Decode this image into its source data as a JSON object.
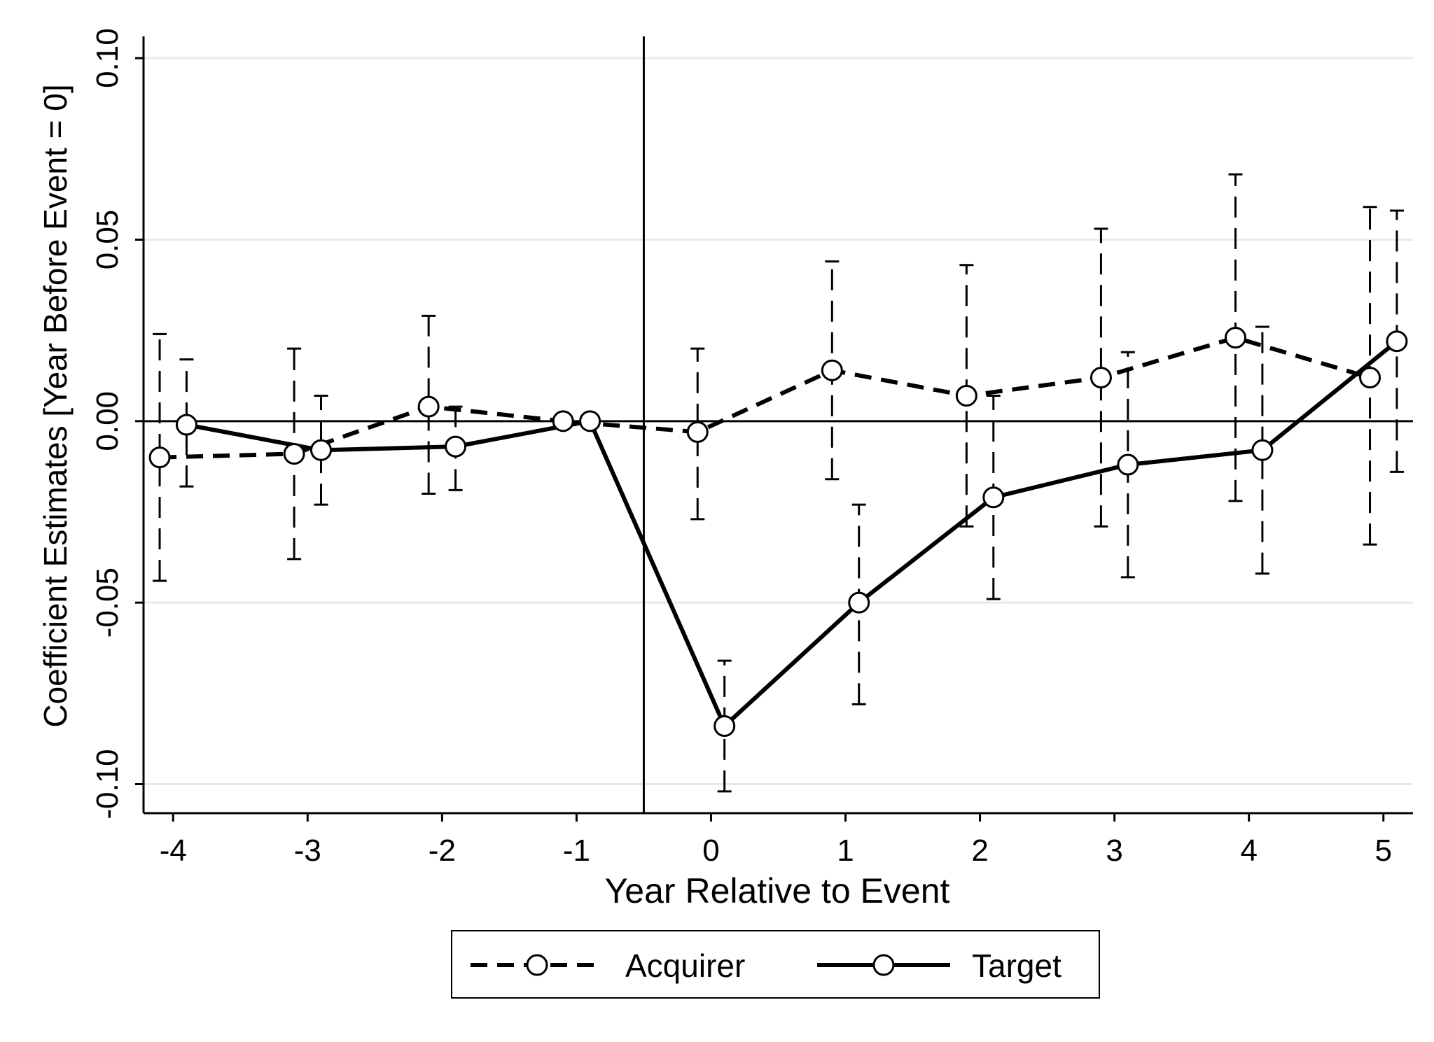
{
  "chart_data": {
    "type": "line",
    "title": "",
    "xlabel": "Year Relative to Event",
    "ylabel": "Coefficient Estimates [Year Before Event = 0]",
    "x": [
      -4,
      -3,
      -2,
      -1,
      0,
      1,
      2,
      3,
      4,
      5
    ],
    "x_tick_labels": [
      "-4",
      "-3",
      "-2",
      "-1",
      "0",
      "1",
      "2",
      "3",
      "4",
      "5"
    ],
    "y_ticks": [
      -0.1,
      -0.05,
      0,
      0.05,
      0.1
    ],
    "y_tick_labels": [
      "-0.10",
      "-0.05",
      "0.00",
      "0.05",
      "0.10"
    ],
    "xlim": [
      -4.22,
      5.22
    ],
    "ylim": [
      -0.108,
      0.106
    ],
    "grid": true,
    "reference_lines": {
      "horizontal_y": 0,
      "vertical_x": -0.5
    },
    "legend": {
      "placement": "bottom-center",
      "entries": [
        "Acquirer",
        "Target"
      ]
    },
    "series": [
      {
        "name": "Acquirer",
        "line_style": "dashed",
        "values": [
          -0.01,
          -0.009,
          0.004,
          0.0,
          -0.003,
          0.014,
          0.007,
          0.012,
          0.023,
          0.012
        ],
        "ci_lower": [
          -0.044,
          -0.038,
          -0.02,
          null,
          -0.027,
          -0.016,
          -0.029,
          -0.029,
          -0.022,
          -0.034
        ],
        "ci_upper": [
          0.024,
          0.02,
          0.029,
          null,
          0.02,
          0.044,
          0.043,
          0.053,
          0.068,
          0.059
        ]
      },
      {
        "name": "Target",
        "line_style": "solid",
        "values": [
          -0.001,
          -0.008,
          -0.007,
          0.0,
          -0.084,
          -0.05,
          -0.021,
          -0.012,
          -0.008,
          0.022
        ],
        "ci_lower": [
          -0.018,
          -0.023,
          -0.019,
          null,
          -0.102,
          -0.078,
          -0.049,
          -0.043,
          -0.042,
          -0.014
        ],
        "ci_upper": [
          0.017,
          0.007,
          0.004,
          null,
          -0.066,
          -0.023,
          0.007,
          0.019,
          0.026,
          0.058
        ]
      }
    ]
  }
}
